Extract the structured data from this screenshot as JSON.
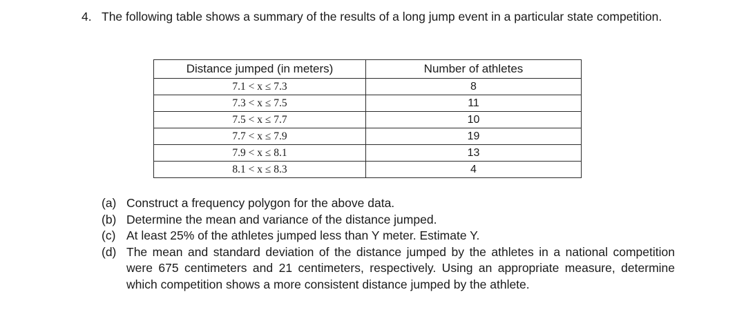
{
  "question": {
    "number": "4.",
    "intro": "The following table shows a summary of the results of a long jump event in a particular state competition."
  },
  "table": {
    "headers": {
      "distance": "Distance jumped (in meters)",
      "athletes": "Number of athletes"
    },
    "rows": [
      {
        "range": "7.1 < x ≤ 7.3",
        "count": "8"
      },
      {
        "range": "7.3 < x ≤ 7.5",
        "count": "11"
      },
      {
        "range": "7.5 < x ≤ 7.7",
        "count": "10"
      },
      {
        "range": "7.7 < x ≤ 7.9",
        "count": "19"
      },
      {
        "range": "7.9 < x ≤ 8.1",
        "count": "13"
      },
      {
        "range": "8.1 < x ≤ 8.3",
        "count": "4"
      }
    ]
  },
  "parts": [
    {
      "label": "(a)",
      "text": "Construct a frequency polygon for the above data."
    },
    {
      "label": "(b)",
      "text": "Determine the mean and variance of the distance jumped."
    },
    {
      "label": "(c)",
      "text": "At least 25% of the athletes jumped less than Y meter. Estimate Y."
    },
    {
      "label": "(d)",
      "text": "The mean and standard deviation of the distance jumped by the athletes in a national competition were 675 centimeters and 21 centimeters, respectively. Using an appropriate measure, determine which competition shows a more consistent distance jumped by the athlete."
    }
  ]
}
